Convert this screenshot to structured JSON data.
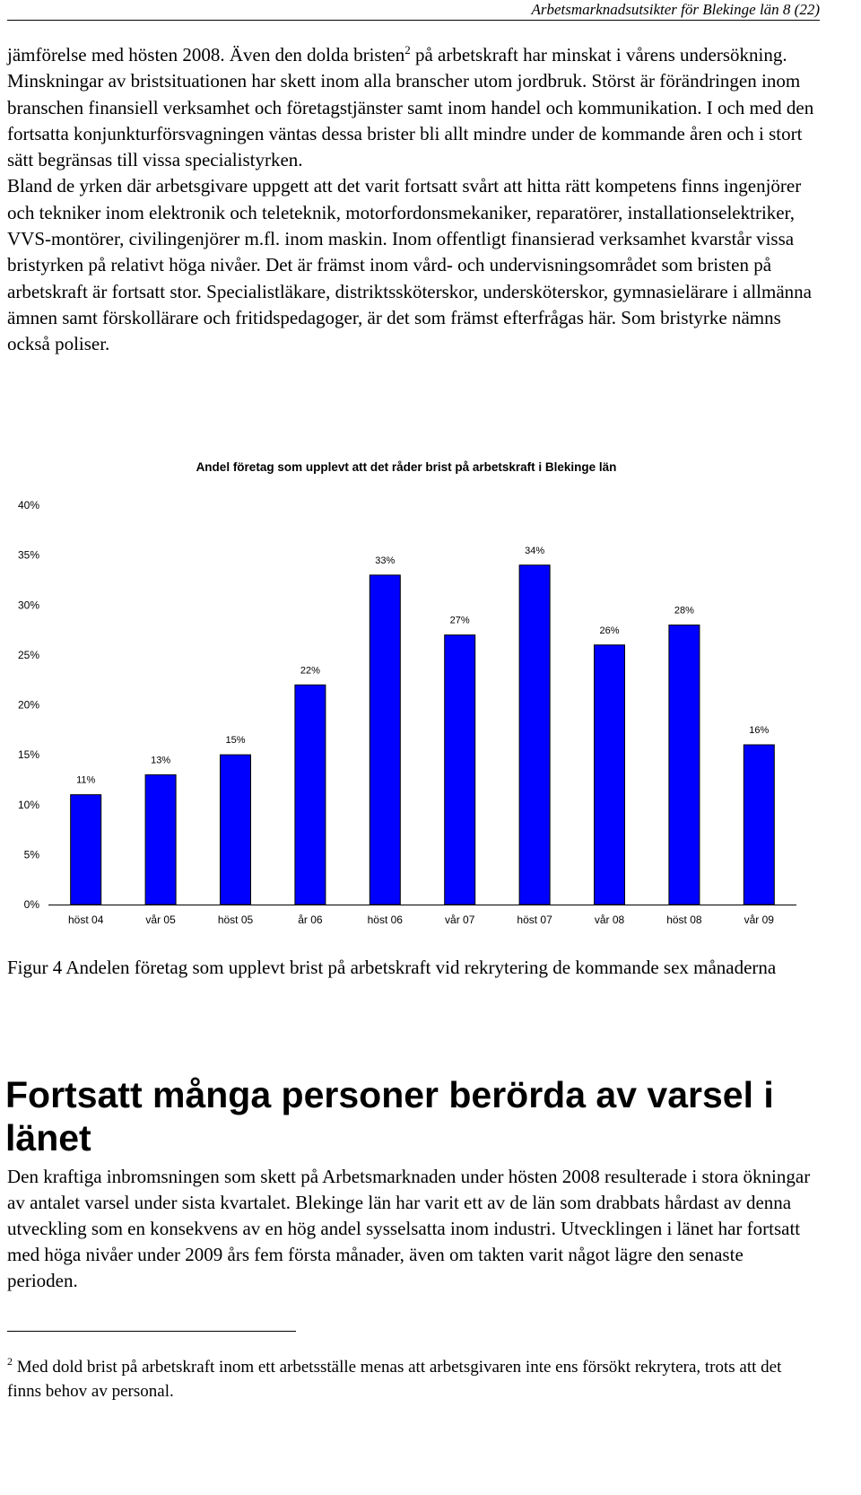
{
  "header": {
    "running_title": "Arbetsmarknadsutsikter för Blekinge län 8 (22)"
  },
  "paragraph1": {
    "part_a": "jämförelse med hösten 2008. Även den dolda bristen",
    "footnote_ref": "2",
    "part_b": " på arbetskraft har minskat i vårens undersökning. Minskningar av bristsituationen har skett inom alla branscher utom jordbruk. Störst är förändringen inom branschen finansiell verksamhet och företagstjänster samt inom handel och kommunikation. I och med den fortsatta konjunkturförsvagningen väntas dessa brister bli allt mindre under de kommande åren och i stort sätt begränsas till vissa specialistyrken.",
    "part_c": "Bland de yrken där arbetsgivare uppgett att det varit fortsatt svårt att hitta rätt kompetens finns ingenjörer och tekniker inom elektronik och teleteknik, motorfordonsmekaniker, reparatörer, installationselektriker, VVS-montörer, civilingenjörer m.fl. inom maskin. Inom offentligt finansierad verksamhet kvarstår vissa bristyrken på relativt höga nivåer. Det är främst inom vård- och undervisningsområdet som bristen på arbetskraft är fortsatt stor. Specialistläkare, distriktssköterskor, undersköterskor, gymnasielärare i allmänna ämnen samt förskollärare och fritidspedagoger, är det som främst efterfrågas här. Som bristyrke nämns också poliser."
  },
  "chart_data": {
    "type": "bar",
    "title": "Andel företag som upplevt att det råder brist på arbetskraft i Blekinge län",
    "categories": [
      "höst 04",
      "vår 05",
      "höst 05",
      "år 06",
      "höst 06",
      "vår 07",
      "höst 07",
      "vår 08",
      "höst 08",
      "vår 09"
    ],
    "values": [
      11,
      13,
      15,
      22,
      33,
      27,
      34,
      26,
      28,
      16
    ],
    "data_labels": [
      "11%",
      "13%",
      "15%",
      "22%",
      "33%",
      "27%",
      "34%",
      "26%",
      "28%",
      "16%"
    ],
    "y_ticks": [
      "0%",
      "5%",
      "10%",
      "15%",
      "20%",
      "25%",
      "30%",
      "35%",
      "40%"
    ],
    "y_tick_values": [
      0,
      5,
      10,
      15,
      20,
      25,
      30,
      35,
      40
    ],
    "ylim": [
      0,
      40
    ],
    "xlabel": "",
    "ylabel": "",
    "grid": false,
    "legend": "none",
    "bar_color": "#0000ff",
    "bar_edge_color": "#000000"
  },
  "caption": {
    "text": "Figur 4 Andelen företag som upplevt brist på arbetskraft vid rekrytering de kommande sex månaderna"
  },
  "section": {
    "heading": "Fortsatt många personer berörda av varsel i länet"
  },
  "paragraph2": {
    "text": "Den kraftiga inbromsningen som skett på Arbetsmarknaden under hösten 2008 resulterade i stora ökningar av antalet varsel under sista kvartalet. Blekinge län har varit ett av de län som drabbats hårdast av denna utveckling som en konsekvens av en hög andel sysselsatta inom industri. Utvecklingen i länet har fortsatt med höga nivåer under 2009 års fem första månader, även om takten varit något lägre den senaste perioden."
  },
  "footnote": {
    "number": "2",
    "text": " Med dold brist på arbetskraft inom ett arbetsställe menas att arbetsgivaren inte ens försökt rekrytera, trots att det finns behov av personal."
  }
}
